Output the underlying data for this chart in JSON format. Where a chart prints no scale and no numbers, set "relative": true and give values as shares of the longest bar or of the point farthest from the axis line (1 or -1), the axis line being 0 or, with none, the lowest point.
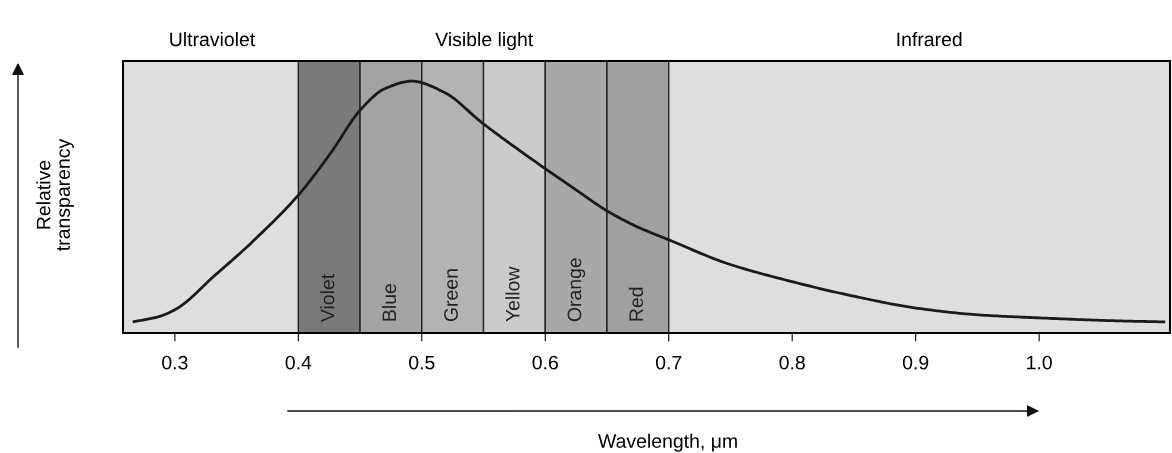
{
  "chart_data": {
    "type": "line",
    "relative": true,
    "xlabel": "Wavelength, μm",
    "ylabel": "Relative\ntransparency",
    "xlim": [
      0.258,
      1.106
    ],
    "xticks": [
      0.3,
      0.4,
      0.5,
      0.6,
      0.7,
      0.8,
      0.9,
      {
        "value": 1.0,
        "label": "1.0"
      }
    ],
    "tick_labels": "x",
    "marker": "none",
    "line_style": "solid",
    "annotations": [
      "Ultraviolet",
      "Visible light",
      "Infrared"
    ],
    "series": [
      {
        "color": "#1a1a1a",
        "x": [
          0.267,
          0.287,
          0.301,
          0.332,
          0.363,
          0.401,
          0.426,
          0.451,
          0.47,
          0.492,
          0.518,
          0.549,
          0.574,
          0.627,
          0.65,
          0.673,
          0.7,
          0.748,
          0.799,
          0.851,
          0.899,
          0.951,
          1.0,
          1.058,
          1.101
        ],
        "values": [
          0.045,
          0.065,
          0.095,
          0.227,
          0.363,
          0.553,
          0.713,
          0.89,
          0.97,
          1.0,
          0.956,
          0.834,
          0.743,
          0.561,
          0.485,
          0.425,
          0.37,
          0.275,
          0.205,
          0.145,
          0.1,
          0.072,
          0.06,
          0.049,
          0.044
        ]
      }
    ],
    "bands": [
      {
        "axis": "x",
        "from": 0.4,
        "to": 0.45,
        "label": "Violet",
        "color": "#7a7a7a"
      },
      {
        "axis": "x",
        "from": 0.45,
        "to": 0.5,
        "label": "Blue",
        "color": "#a3a3a3"
      },
      {
        "axis": "x",
        "from": 0.5,
        "to": 0.55,
        "label": "Green",
        "color": "#b3b3b3"
      },
      {
        "axis": "x",
        "from": 0.55,
        "to": 0.6,
        "label": "Yellow",
        "color": "#cbcbcb"
      },
      {
        "axis": "x",
        "from": 0.6,
        "to": 0.65,
        "label": "Orange",
        "color": "#a8a8a8"
      },
      {
        "axis": "x",
        "from": 0.65,
        "to": 0.7,
        "label": "Red",
        "color": "#a0a0a0"
      }
    ]
  }
}
